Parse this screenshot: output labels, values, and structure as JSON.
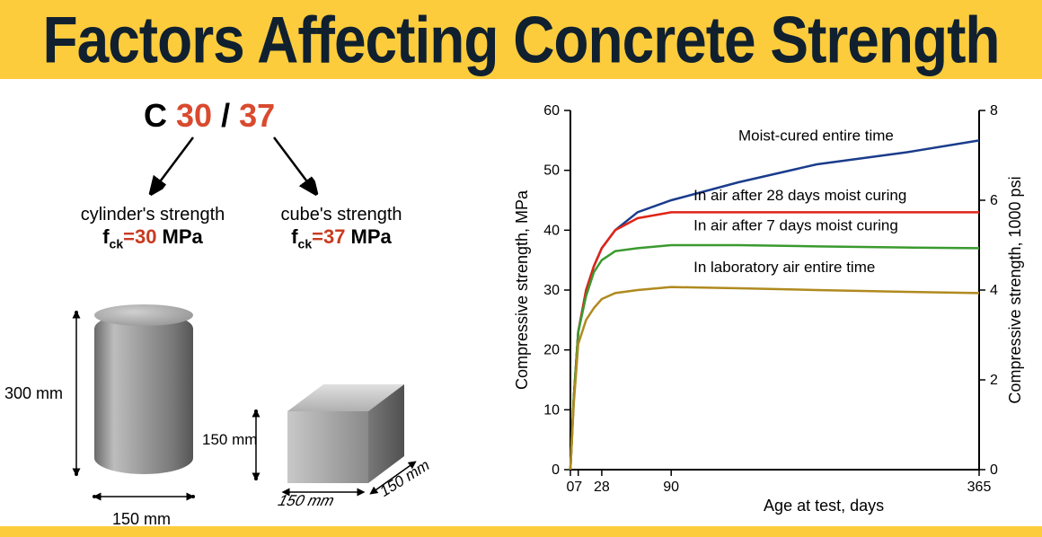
{
  "title": "Factors Affecting Concrete Strength",
  "colors": {
    "titleBg": "#fccc3d",
    "titleText": "#10202f",
    "accent": "#d94a2e",
    "accentDark": "#c83a20"
  },
  "grade": {
    "prefix": "C",
    "cyl": "30",
    "sep": "/",
    "cube": "37"
  },
  "leftLabels": {
    "cylinderTitle": "cylinder's strength",
    "cubeTitle": "cube's strength",
    "fckCyl": "=30",
    "fckCube": "=37",
    "fckSym": "f",
    "fckSub": "ck",
    "unit": " MPa"
  },
  "dimensions": {
    "cylHeight": "300 mm",
    "cylDia": "150 mm",
    "cubeH": "150 mm",
    "cubeW1": "150 mm",
    "cubeW2": "150 mm"
  },
  "chart": {
    "type": "line",
    "ylabel": "Compressive strength, MPa",
    "y2label": "Compressive strength, 1000 psi",
    "xlabel": "Age at test, days",
    "xlim": [
      0,
      365
    ],
    "ylim": [
      0,
      60
    ],
    "y2lim": [
      0,
      8
    ],
    "yticks": [
      0,
      10,
      20,
      30,
      40,
      50,
      60
    ],
    "y2ticks": [
      0,
      2,
      4,
      6,
      8
    ],
    "xticks": [
      0,
      7,
      28,
      90,
      365
    ],
    "xtick_labels": [
      "0",
      "7",
      "28",
      "90",
      "365"
    ],
    "background_color": "#ffffff",
    "tick_fontsize": 16,
    "label_fontsize": 18,
    "series": [
      {
        "name": "Moist-cured entire time",
        "color": "#1a3c8c",
        "label_xy": [
          150,
          55
        ],
        "data": [
          [
            0,
            0
          ],
          [
            3,
            12
          ],
          [
            7,
            23
          ],
          [
            14,
            30
          ],
          [
            21,
            34
          ],
          [
            28,
            37
          ],
          [
            40,
            40
          ],
          [
            60,
            43
          ],
          [
            90,
            45
          ],
          [
            150,
            48
          ],
          [
            220,
            51
          ],
          [
            300,
            53
          ],
          [
            365,
            55
          ]
        ]
      },
      {
        "name": "In air after 28 days moist curing",
        "color": "#e02418",
        "label_xy": [
          110,
          45
        ],
        "data": [
          [
            0,
            0
          ],
          [
            3,
            12
          ],
          [
            7,
            23
          ],
          [
            14,
            30
          ],
          [
            21,
            34
          ],
          [
            28,
            37
          ],
          [
            40,
            40
          ],
          [
            60,
            42
          ],
          [
            90,
            43
          ],
          [
            150,
            43
          ],
          [
            220,
            43
          ],
          [
            300,
            43
          ],
          [
            365,
            43
          ]
        ]
      },
      {
        "name": "In air after 7 days moist curing",
        "color": "#3a9a2e",
        "label_xy": [
          110,
          40
        ],
        "data": [
          [
            0,
            0
          ],
          [
            3,
            12
          ],
          [
            7,
            23
          ],
          [
            14,
            29
          ],
          [
            21,
            33
          ],
          [
            28,
            35
          ],
          [
            40,
            36.5
          ],
          [
            60,
            37
          ],
          [
            90,
            37.5
          ],
          [
            150,
            37.5
          ],
          [
            220,
            37.3
          ],
          [
            300,
            37.1
          ],
          [
            365,
            37
          ]
        ]
      },
      {
        "name": "In laboratory air entire time",
        "color": "#b08a1f",
        "label_xy": [
          110,
          33
        ],
        "data": [
          [
            0,
            0
          ],
          [
            3,
            11
          ],
          [
            7,
            21
          ],
          [
            14,
            25
          ],
          [
            21,
            27
          ],
          [
            28,
            28.5
          ],
          [
            40,
            29.5
          ],
          [
            60,
            30
          ],
          [
            90,
            30.5
          ],
          [
            150,
            30.3
          ],
          [
            220,
            30
          ],
          [
            300,
            29.7
          ],
          [
            365,
            29.5
          ]
        ]
      }
    ]
  }
}
